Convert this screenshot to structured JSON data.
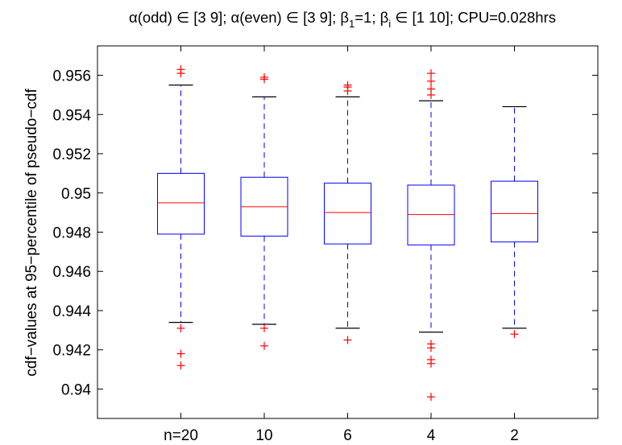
{
  "chart_data": {
    "type": "box",
    "title": "α(odd) ∈ [3  9]; α(even) ∈ [3  9]; β₁=1; βᵢ ∈ [1 10]; CPU=0.028hrs",
    "title_parts": {
      "a1": "α(odd) ∈ [3  9]; α(even) ∈ [3  9]; β",
      "sub1": "1",
      "a2": "=1; β",
      "sub2": "i",
      "a3": " ∈ [1 10]; CPU=0.028hrs"
    },
    "xlabel": "",
    "ylabel": "cdf−values at 95−percentile of pseudo−cdf",
    "categories": [
      "n=20",
      "10",
      "6",
      "4",
      "2"
    ],
    "ylim": [
      0.9385,
      0.9575
    ],
    "yticks": [
      0.94,
      0.942,
      0.944,
      0.946,
      0.948,
      0.95,
      0.952,
      0.954,
      0.956
    ],
    "ytick_labels": [
      "0.94",
      "0.942",
      "0.944",
      "0.946",
      "0.948",
      "0.95",
      "0.952",
      "0.954",
      "0.956"
    ],
    "grid": false,
    "colors": {
      "box": "#0000ff",
      "median": "#ff0000",
      "outlier": "#ff0000",
      "whisker_cap": "#000000",
      "axes": "#000000"
    },
    "boxes": [
      {
        "label": "n=20",
        "q1": 0.9479,
        "median": 0.9495,
        "q3": 0.951,
        "whisker_low": 0.9434,
        "whisker_high": 0.9555,
        "outliers": [
          0.9563,
          0.9561,
          0.9431,
          0.9418,
          0.9412
        ]
      },
      {
        "label": "10",
        "q1": 0.9478,
        "median": 0.9493,
        "q3": 0.9508,
        "whisker_low": 0.9433,
        "whisker_high": 0.9549,
        "outliers": [
          0.9559,
          0.9558,
          0.9431,
          0.9422
        ]
      },
      {
        "label": "6",
        "q1": 0.9474,
        "median": 0.949,
        "q3": 0.9505,
        "whisker_low": 0.9431,
        "whisker_high": 0.9549,
        "outliers": [
          0.9555,
          0.9554,
          0.9552,
          0.9425
        ]
      },
      {
        "label": "4",
        "q1": 0.94735,
        "median": 0.9489,
        "q3": 0.9504,
        "whisker_low": 0.9429,
        "whisker_high": 0.9547,
        "outliers": [
          0.9561,
          0.9557,
          0.9553,
          0.955,
          0.9423,
          0.9421,
          0.9415,
          0.9413,
          0.9396
        ]
      },
      {
        "label": "2",
        "q1": 0.9475,
        "median": 0.94895,
        "q3": 0.9506,
        "whisker_low": 0.9431,
        "whisker_high": 0.9544,
        "outliers": [
          0.9428
        ]
      }
    ]
  }
}
